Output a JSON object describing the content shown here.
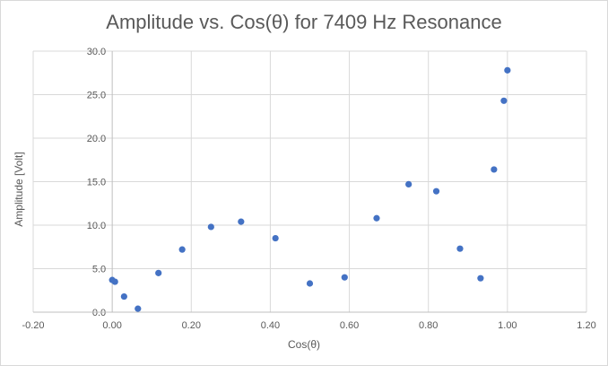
{
  "chart_data": {
    "type": "scatter",
    "title": "Amplitude vs. Cos(θ) for 7409 Hz Resonance",
    "xlabel": "Cos(θ)",
    "ylabel": "Amplitude [Volt]",
    "xlim": [
      -0.2,
      1.2
    ],
    "ylim": [
      0,
      30
    ],
    "xticks": [
      "-0.20",
      "0.00",
      "0.20",
      "0.40",
      "0.60",
      "0.80",
      "1.00",
      "1.20"
    ],
    "yticks": [
      "0.0",
      "5.0",
      "10.0",
      "15.0",
      "20.0",
      "25.0",
      "30.0"
    ],
    "grid": true,
    "marker_color": "#4472c4",
    "series": [
      {
        "x": [
          0.0,
          0.007,
          0.03,
          0.065,
          0.117,
          0.177,
          0.25,
          0.326,
          0.413,
          0.5,
          0.588,
          0.669,
          0.75,
          0.82,
          0.88,
          0.932,
          0.966,
          0.991,
          1.0
        ],
        "y": [
          3.7,
          3.5,
          1.8,
          0.4,
          4.5,
          7.2,
          9.8,
          10.4,
          8.5,
          3.3,
          4.0,
          10.8,
          14.7,
          13.9,
          7.3,
          3.9,
          16.4,
          24.3,
          27.8
        ]
      }
    ]
  }
}
